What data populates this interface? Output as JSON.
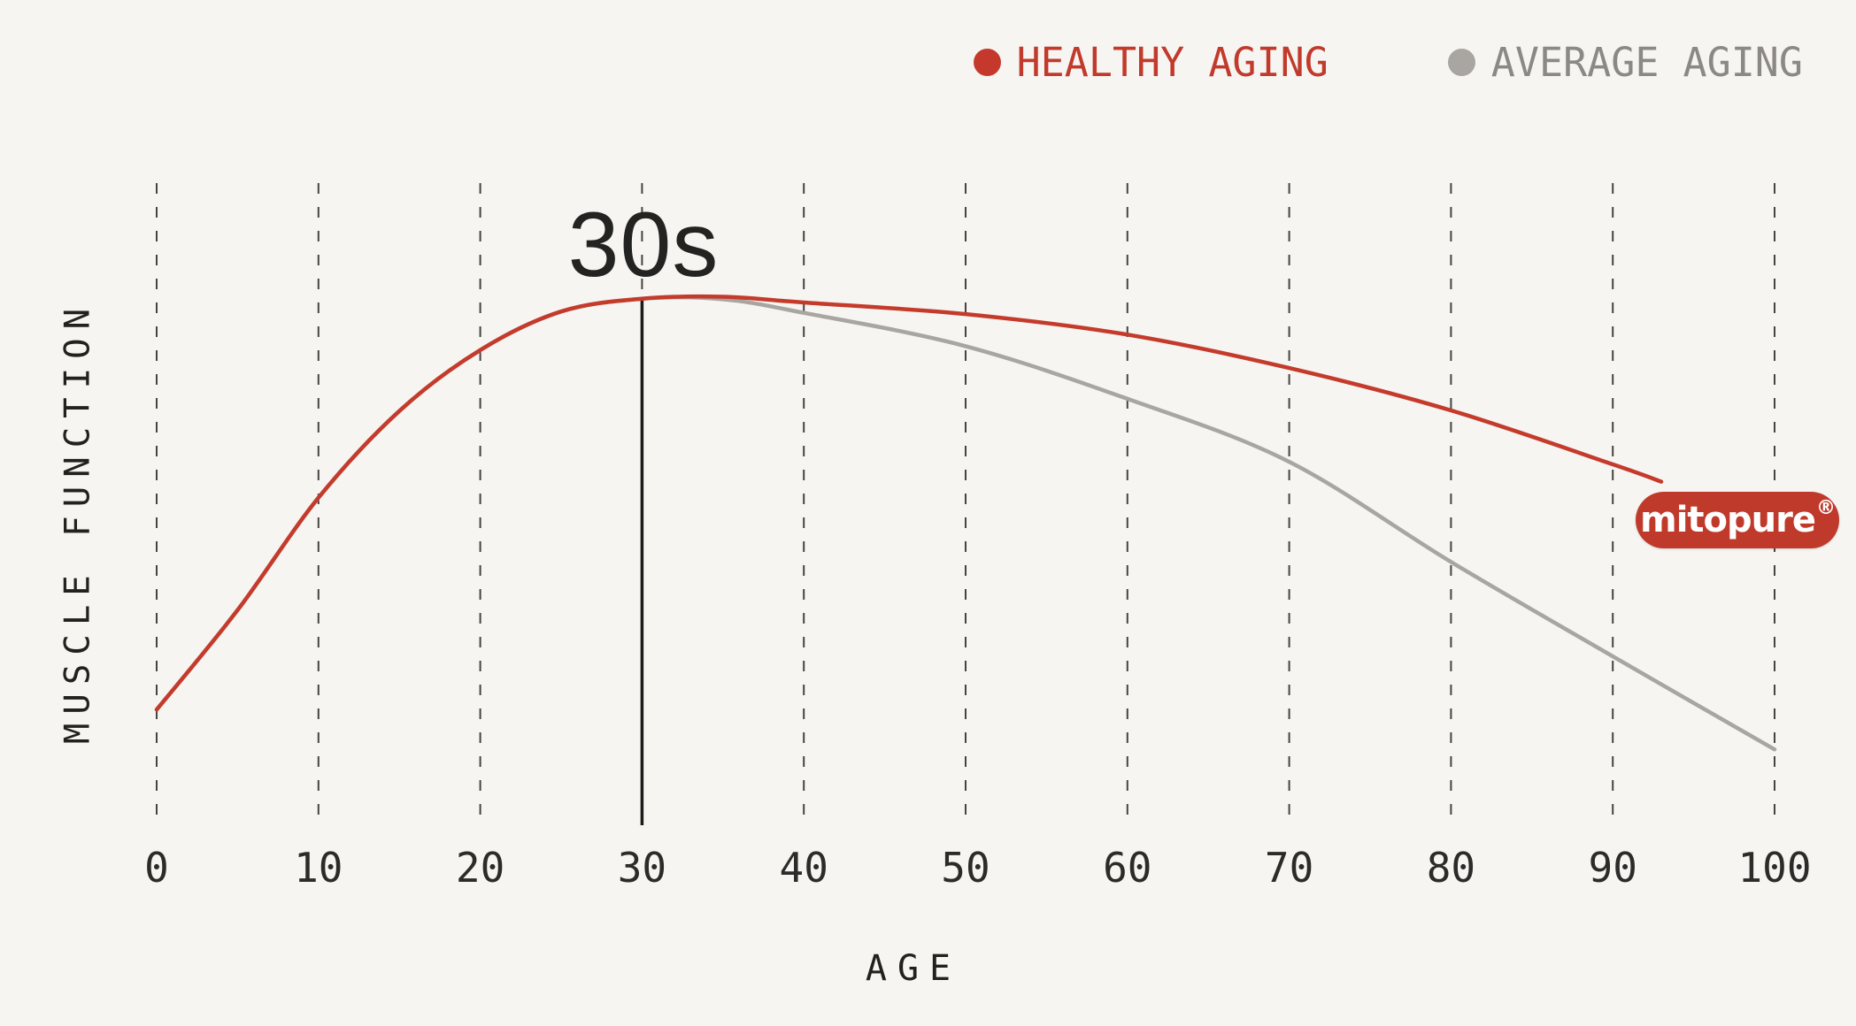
{
  "legend": [
    {
      "label": "HEALTHY AGING",
      "text_color": "#c13a2c",
      "dot_color": "#c5392d"
    },
    {
      "label": "AVERAGE AGING",
      "text_color": "#8c8884",
      "dot_color": "#a9a5a1"
    }
  ],
  "annotation": {
    "label": "30s",
    "age": 30
  },
  "badge": {
    "text": "mitopure",
    "reg": "®",
    "bg_color": "#c03a2b",
    "text_color": "#ffffff"
  },
  "colors": {
    "background": "#f6f5f2",
    "grid": "#45443f",
    "marker_line": "#1b1b19",
    "tick_text": "#2b2b29",
    "healthy": "#c43b2c",
    "average": "#a9a5a1"
  },
  "chart_data": {
    "type": "line",
    "title": "",
    "xlabel": "AGE",
    "ylabel": "MUSCLE FUNCTION",
    "x_ticks": [
      0,
      10,
      20,
      30,
      40,
      50,
      60,
      70,
      80,
      90,
      100
    ],
    "xlim": [
      0,
      100
    ],
    "ylim": [
      0,
      100
    ],
    "y_axis_ticks_visible": false,
    "grid": "vertical-dashed",
    "legend_position": "top-right",
    "series": [
      {
        "name": "AVERAGE AGING",
        "color": "#a9a5a1",
        "x": [
          0,
          5,
          10,
          15,
          20,
          25,
          30,
          35,
          40,
          50,
          60,
          70,
          80,
          90,
          100
        ],
        "y": [
          18,
          33.5,
          51,
          64.5,
          74,
          80,
          82,
          81.9,
          79.8,
          74.6,
          66.4,
          56.6,
          41,
          26.3,
          11.8
        ]
      },
      {
        "name": "HEALTHY AGING",
        "color": "#c43b2c",
        "x": [
          0,
          5,
          10,
          15,
          20,
          25,
          30,
          35,
          40,
          50,
          60,
          70,
          80,
          90,
          93
        ],
        "y": [
          18,
          33.5,
          51,
          64.5,
          74,
          80,
          82,
          82.3,
          81.4,
          79.6,
          76.4,
          71.2,
          64.6,
          56.2,
          53.5
        ]
      }
    ],
    "annotations": [
      {
        "type": "vline",
        "x": 30,
        "label": "30s",
        "value_at_top": 82
      }
    ]
  }
}
